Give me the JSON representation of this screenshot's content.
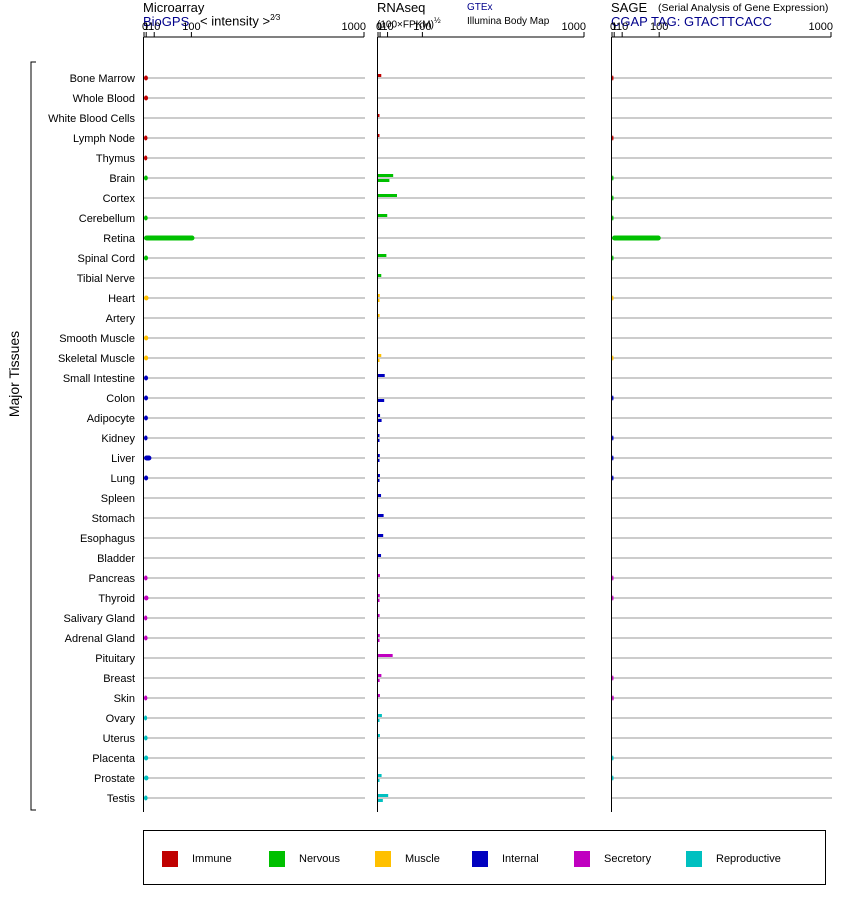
{
  "headers": {
    "microarray": {
      "title": "Microarray",
      "source": "BioGPS",
      "scale": "< intensity >",
      "scale_exp": "2⁄3"
    },
    "rnaseq": {
      "title": "RNAseq",
      "scale": "(100×FPKM)",
      "scale_exp": "½",
      "source1": "GTEx",
      "source2": "Illumina Body Map"
    },
    "sage": {
      "title": "SAGE",
      "subtitle": "(Serial Analysis of Gene Expression)",
      "tag": "CGAP TAG: GTACTTCACC"
    }
  },
  "y_group_label": "Major Tissues",
  "legend": [
    {
      "label": "Immune",
      "color": "#c00000"
    },
    {
      "label": "Nervous",
      "color": "#00c000"
    },
    {
      "label": "Muscle",
      "color": "#ffc000"
    },
    {
      "label": "Internal",
      "color": "#0000c0"
    },
    {
      "label": "Secretory",
      "color": "#c000c0"
    },
    {
      "label": "Reproductive",
      "color": "#00c0c0"
    }
  ],
  "chart_data": {
    "type": "bar",
    "orientation": "horizontal",
    "x_axis": {
      "ticks": [
        "0",
        "1",
        "10",
        "100",
        "1000"
      ]
    },
    "categories": [
      "Bone Marrow",
      "Whole Blood",
      "White Blood Cells",
      "Lymph Node",
      "Thymus",
      "Brain",
      "Cortex",
      "Cerebellum",
      "Retina",
      "Spinal Cord",
      "Tibial Nerve",
      "Heart",
      "Artery",
      "Smooth Muscle",
      "Skeletal Muscle",
      "Small Intestine",
      "Colon",
      "Adipocyte",
      "Kidney",
      "Liver",
      "Lung",
      "Spleen",
      "Stomach",
      "Esophagus",
      "Bladder",
      "Pancreas",
      "Thyroid",
      "Salivary Gland",
      "Adrenal Gland",
      "Pituitary",
      "Breast",
      "Skin",
      "Ovary",
      "Uterus",
      "Placenta",
      "Prostate",
      "Testis"
    ],
    "tissue_system": [
      "Immune",
      "Immune",
      "Immune",
      "Immune",
      "Immune",
      "Nervous",
      "Nervous",
      "Nervous",
      "Nervous",
      "Nervous",
      "Nervous",
      "Muscle",
      "Muscle",
      "Muscle",
      "Muscle",
      "Internal",
      "Internal",
      "Internal",
      "Internal",
      "Internal",
      "Internal",
      "Internal",
      "Internal",
      "Internal",
      "Internal",
      "Secretory",
      "Secretory",
      "Secretory",
      "Secretory",
      "Secretory",
      "Secretory",
      "Secretory",
      "Reproductive",
      "Reproductive",
      "Reproductive",
      "Reproductive",
      "Reproductive"
    ],
    "panels": [
      {
        "name": "Microarray",
        "values": [
          2.4,
          2.5,
          null,
          2.0,
          1.9,
          2.3,
          null,
          2.2,
          110,
          2.5,
          null,
          3.0,
          null,
          2.7,
          2.6,
          2.5,
          2.5,
          2.4,
          2.1,
          6.2,
          2.6,
          null,
          null,
          null,
          null,
          2.1,
          2.9,
          1.9,
          2.1,
          null,
          null,
          1.9,
          1.7,
          2.1,
          2.6,
          2.9,
          2.1
        ]
      },
      {
        "name": "GTEx",
        "values": [
          2.0,
          null,
          0.2,
          0.3,
          null,
          20,
          28,
          9.5,
          null,
          8.2,
          2.0,
          0.8,
          0.7,
          null,
          2.0,
          5.9,
          null,
          1.0,
          0.4,
          0.8,
          0.9,
          1.8,
          4.5,
          4.0,
          1.8,
          0.9,
          0.8,
          0.7,
          0.8,
          19,
          2.1,
          0.9,
          2.6,
          0.9,
          null,
          2.3,
          11
        ]
      },
      {
        "name": "Illumina Body Map",
        "values": [
          null,
          null,
          null,
          null,
          null,
          13,
          null,
          null,
          null,
          null,
          null,
          0.1,
          null,
          null,
          0.1,
          null,
          5.2,
          2.3,
          0.1,
          0.1,
          0.1,
          null,
          null,
          null,
          null,
          null,
          0.1,
          null,
          0.1,
          null,
          0.7,
          null,
          0.1,
          null,
          null,
          0.1,
          3.6
        ]
      },
      {
        "name": "SAGE",
        "values": [
          0.06,
          null,
          null,
          0.06,
          null,
          0.05,
          0.03,
          0.03,
          105,
          0.03,
          null,
          0.02,
          null,
          null,
          0.02,
          null,
          0.07,
          null,
          0.07,
          0.07,
          0.07,
          null,
          null,
          null,
          null,
          0.06,
          0.06,
          null,
          null,
          null,
          0.06,
          0.7,
          null,
          null,
          0.04,
          0.04,
          null
        ]
      }
    ]
  }
}
